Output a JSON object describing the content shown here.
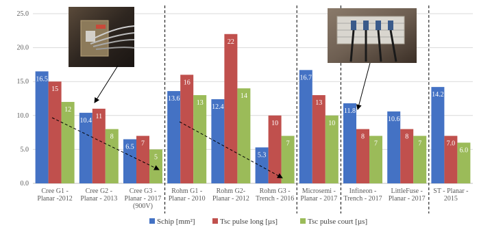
{
  "chart_data": {
    "type": "bar",
    "ylim": [
      0,
      25
    ],
    "yticks": [
      "0.0",
      "5.0",
      "10.0",
      "15.0",
      "20.0",
      "25.0"
    ],
    "grid": true,
    "legend_position": "bottom",
    "categories": [
      [
        "Cree G1 -",
        "Planar -2012"
      ],
      [
        "Cree G2 -",
        "Planar - 2013"
      ],
      [
        "Cree G3 -",
        "Planar - 2017",
        "(900V)"
      ],
      [
        "Rohm G1 -",
        "Planar - 2010"
      ],
      [
        "Rohm G2-",
        "Planar - 2012"
      ],
      [
        "Rohm G3 -",
        "Trench - 2016"
      ],
      [
        "Microsemi -",
        "Planar - 2017"
      ],
      [
        "Infineon -",
        "Trench - 2017"
      ],
      [
        "LittleFuse -",
        "Planar - 2017"
      ],
      [
        "ST - Planar -",
        "2015"
      ]
    ],
    "series": [
      {
        "name": "Schip [mm²]",
        "color": "#4472C4",
        "values": [
          16.5,
          10.4,
          6.5,
          13.6,
          12.4,
          5.3,
          16.7,
          11.8,
          10.6,
          14.2
        ],
        "labels": [
          "16.5",
          "10.4",
          "6.5",
          "13.6",
          "12.4",
          "5.3",
          "16.7",
          "11.8",
          "10.6",
          "14.2"
        ]
      },
      {
        "name": "Tsc pulse long [µs]",
        "color": "#C0504D",
        "values": [
          15,
          11,
          7,
          16,
          22,
          10,
          13,
          8,
          8,
          7.0
        ],
        "labels": [
          "15",
          "11",
          "7",
          "16",
          "22",
          "10",
          "13",
          "8",
          "8",
          "7.0"
        ]
      },
      {
        "name": "Tsc pulse court [µs]",
        "color": "#9BBB59",
        "values": [
          12,
          8,
          5,
          13,
          14,
          7,
          10,
          7,
          7,
          6.0
        ],
        "labels": [
          "12",
          "8",
          "5",
          "13",
          "14",
          "7",
          "10",
          "7",
          "7",
          "6.0"
        ]
      }
    ],
    "group_separators": "dashed vertical lines between manufacturers",
    "annotations": [
      "dashed downward trend arrow over Cree generations",
      "dashed downward trend arrow over Rohm generations",
      "die photograph with arrow to Cree G2",
      "die photograph with arrow to Infineon"
    ]
  }
}
